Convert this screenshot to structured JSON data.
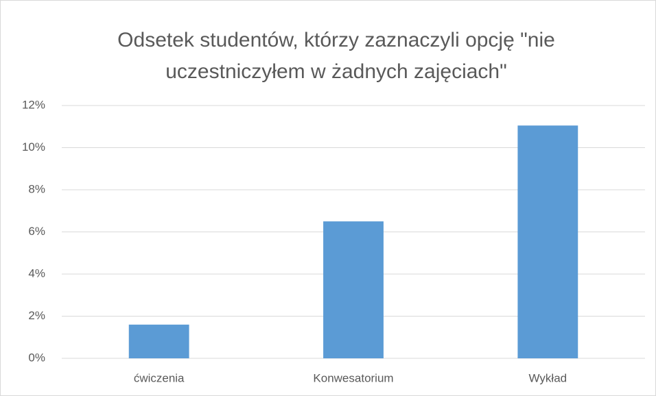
{
  "chart_data": {
    "type": "bar",
    "title": [
      "Odsetek studentów, którzy zaznaczyli opcję \"nie",
      "uczestniczyłem w żadnych zajęciach\""
    ],
    "categories": [
      "ćwiczenia",
      "Konwesatorium",
      "Wykład"
    ],
    "values": [
      1.6,
      6.5,
      11.05
    ],
    "color": "#5b9bd5",
    "ylim": [
      0,
      12
    ],
    "yticks": [
      {
        "value": 0,
        "label": "0%"
      },
      {
        "value": 2,
        "label": "2%"
      },
      {
        "value": 4,
        "label": "4%"
      },
      {
        "value": 6,
        "label": "6%"
      },
      {
        "value": 8,
        "label": "8%"
      },
      {
        "value": 10,
        "label": "10%"
      },
      {
        "value": 12,
        "label": "12%"
      }
    ],
    "grid": true
  }
}
